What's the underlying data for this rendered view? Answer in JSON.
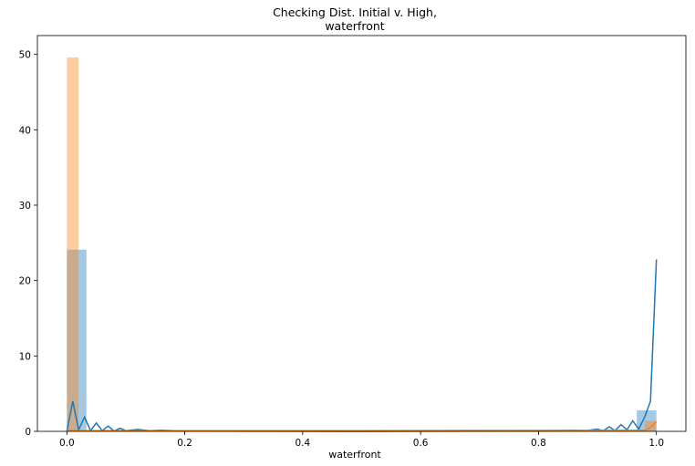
{
  "chart_data": {
    "type": "histogram",
    "title_lines": [
      "Checking Dist. Initial v. High,",
      "waterfront"
    ],
    "xlabel": "waterfront",
    "ylabel": "",
    "xlim": [
      -0.05,
      1.05
    ],
    "ylim": [
      0,
      52.5
    ],
    "xticks": [
      0.0,
      0.2,
      0.4,
      0.6,
      0.8,
      1.0
    ],
    "xtick_labels": [
      "0.0",
      "0.2",
      "0.4",
      "0.6",
      "0.8",
      "1.0"
    ],
    "yticks": [
      0,
      10,
      20,
      30,
      40,
      50
    ],
    "ytick_labels": [
      "0",
      "10",
      "20",
      "30",
      "40",
      "50"
    ],
    "grid": false,
    "legend": "none",
    "series": [
      {
        "key": "blue",
        "color": "#1f77b4",
        "bars": [
          {
            "x0": 0.0,
            "x1": 0.0333,
            "height": 24.1
          },
          {
            "x0": 0.9667,
            "x1": 1.0,
            "height": 2.8
          }
        ],
        "kde_x": [
          0.0,
          0.01,
          0.02,
          0.03,
          0.04,
          0.05,
          0.06,
          0.07,
          0.08,
          0.09,
          0.1,
          0.12,
          0.14,
          0.16,
          0.2,
          0.5,
          0.8,
          0.86,
          0.88,
          0.9,
          0.91,
          0.92,
          0.93,
          0.94,
          0.95,
          0.96,
          0.97,
          0.98,
          0.99,
          1.0
        ],
        "kde_y": [
          0.0,
          4.0,
          0.2,
          1.9,
          0.1,
          1.1,
          0.1,
          0.7,
          0.05,
          0.4,
          0.1,
          0.25,
          0.1,
          0.15,
          0.05,
          0.0,
          0.05,
          0.15,
          0.1,
          0.3,
          0.1,
          0.6,
          0.1,
          0.9,
          0.2,
          1.4,
          0.3,
          1.9,
          4.0,
          22.8
        ]
      },
      {
        "key": "orange",
        "color": "#ff7f0e",
        "bars": [
          {
            "x0": 0.0,
            "x1": 0.02,
            "height": 49.6
          },
          {
            "x0": 0.98,
            "x1": 1.0,
            "height": 1.4
          }
        ],
        "kde_x": [
          0.0,
          0.5,
          0.98,
          0.99,
          1.0
        ],
        "kde_y": [
          0.1,
          0.1,
          0.15,
          0.5,
          1.3
        ]
      }
    ]
  }
}
